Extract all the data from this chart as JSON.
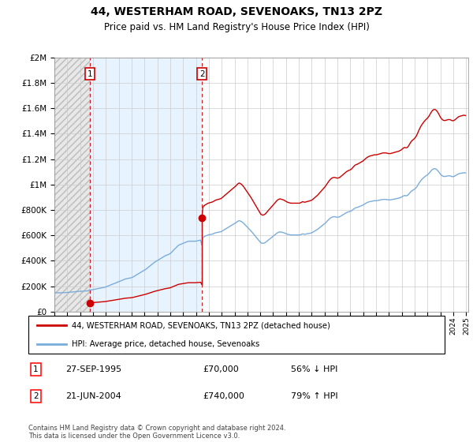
{
  "title": "44, WESTERHAM ROAD, SEVENOAKS, TN13 2PZ",
  "subtitle": "Price paid vs. HM Land Registry's House Price Index (HPI)",
  "sale1_date": "1995-09-27",
  "sale1_price": 70000,
  "sale2_date": "2004-06-21",
  "sale2_price": 740000,
  "legend_red": "44, WESTERHAM ROAD, SEVENOAKS, TN13 2PZ (detached house)",
  "legend_blue": "HPI: Average price, detached house, Sevenoaks",
  "footer": "Contains HM Land Registry data © Crown copyright and database right 2024.\nThis data is licensed under the Open Government Licence v3.0.",
  "red_color": "#cc0000",
  "blue_color": "#7aaddb",
  "vline_color": "#cc0000",
  "ylim": [
    0,
    2000000
  ],
  "yticks": [
    0,
    200000,
    400000,
    600000,
    800000,
    1000000,
    1200000,
    1400000,
    1600000,
    1800000,
    2000000
  ],
  "hpi_index_at_sale1": 100.0,
  "hpi_index_at_sale2": 307.0,
  "hpi_monthly": {
    "1993-01": 88,
    "1993-02": 87,
    "1993-03": 87,
    "1993-04": 87,
    "1993-05": 87,
    "1993-06": 87,
    "1993-07": 87,
    "1993-08": 87,
    "1993-09": 88,
    "1993-10": 88,
    "1993-11": 88,
    "1993-12": 88,
    "1994-01": 89,
    "1994-02": 89,
    "1994-03": 90,
    "1994-04": 90,
    "1994-05": 90,
    "1994-06": 91,
    "1994-07": 91,
    "1994-08": 92,
    "1994-09": 92,
    "1994-10": 93,
    "1994-11": 93,
    "1994-12": 94,
    "1995-01": 94,
    "1995-02": 94,
    "1995-03": 94,
    "1995-04": 95,
    "1995-05": 95,
    "1995-06": 95,
    "1995-07": 96,
    "1995-08": 96,
    "1995-09": 100,
    "1995-10": 100,
    "1995-11": 100,
    "1995-12": 101,
    "1996-01": 102,
    "1996-02": 103,
    "1996-03": 104,
    "1996-04": 105,
    "1996-05": 106,
    "1996-06": 107,
    "1996-07": 108,
    "1996-08": 109,
    "1996-09": 110,
    "1996-10": 111,
    "1996-11": 112,
    "1996-12": 113,
    "1997-01": 115,
    "1997-02": 117,
    "1997-03": 119,
    "1997-04": 121,
    "1997-05": 123,
    "1997-06": 125,
    "1997-07": 127,
    "1997-08": 129,
    "1997-09": 131,
    "1997-10": 133,
    "1997-11": 135,
    "1997-12": 137,
    "1998-01": 139,
    "1998-02": 141,
    "1998-03": 143,
    "1998-04": 145,
    "1998-05": 147,
    "1998-06": 149,
    "1998-07": 151,
    "1998-08": 152,
    "1998-09": 153,
    "1998-10": 154,
    "1998-11": 155,
    "1998-12": 156,
    "1999-01": 158,
    "1999-02": 160,
    "1999-03": 163,
    "1999-04": 166,
    "1999-05": 169,
    "1999-06": 172,
    "1999-07": 175,
    "1999-08": 178,
    "1999-09": 181,
    "1999-10": 184,
    "1999-11": 187,
    "1999-12": 190,
    "2000-01": 193,
    "2000-02": 196,
    "2000-03": 200,
    "2000-04": 204,
    "2000-05": 208,
    "2000-06": 212,
    "2000-07": 216,
    "2000-08": 220,
    "2000-09": 224,
    "2000-10": 228,
    "2000-11": 231,
    "2000-12": 234,
    "2001-01": 237,
    "2001-02": 240,
    "2001-03": 243,
    "2001-04": 246,
    "2001-05": 249,
    "2001-06": 252,
    "2001-07": 255,
    "2001-08": 258,
    "2001-09": 260,
    "2001-10": 262,
    "2001-11": 264,
    "2001-12": 266,
    "2002-01": 270,
    "2002-02": 275,
    "2002-03": 280,
    "2002-04": 285,
    "2002-05": 290,
    "2002-06": 295,
    "2002-07": 300,
    "2002-08": 305,
    "2002-09": 308,
    "2002-10": 310,
    "2002-11": 312,
    "2002-12": 314,
    "2003-01": 316,
    "2003-02": 318,
    "2003-03": 320,
    "2003-04": 322,
    "2003-05": 324,
    "2003-06": 325,
    "2003-07": 325,
    "2003-08": 325,
    "2003-09": 325,
    "2003-10": 325,
    "2003-11": 325,
    "2003-12": 325,
    "2004-01": 326,
    "2004-02": 327,
    "2004-03": 328,
    "2004-04": 329,
    "2004-05": 330,
    "2004-06": 307,
    "2004-07": 340,
    "2004-08": 345,
    "2004-09": 348,
    "2004-10": 350,
    "2004-11": 352,
    "2004-12": 354,
    "2005-01": 355,
    "2005-02": 356,
    "2005-03": 357,
    "2005-04": 358,
    "2005-05": 360,
    "2005-06": 362,
    "2005-07": 364,
    "2005-08": 365,
    "2005-09": 366,
    "2005-10": 367,
    "2005-11": 368,
    "2005-12": 369,
    "2006-01": 372,
    "2006-02": 375,
    "2006-03": 378,
    "2006-04": 381,
    "2006-05": 384,
    "2006-06": 387,
    "2006-07": 390,
    "2006-08": 393,
    "2006-09": 396,
    "2006-10": 399,
    "2006-11": 402,
    "2006-12": 405,
    "2007-01": 408,
    "2007-02": 411,
    "2007-03": 415,
    "2007-04": 418,
    "2007-05": 420,
    "2007-06": 418,
    "2007-07": 416,
    "2007-08": 412,
    "2007-09": 408,
    "2007-10": 403,
    "2007-11": 398,
    "2007-12": 393,
    "2008-01": 388,
    "2008-02": 383,
    "2008-03": 378,
    "2008-04": 372,
    "2008-05": 366,
    "2008-06": 360,
    "2008-07": 354,
    "2008-08": 348,
    "2008-09": 342,
    "2008-10": 336,
    "2008-11": 330,
    "2008-12": 324,
    "2009-01": 318,
    "2009-02": 316,
    "2009-03": 315,
    "2009-04": 316,
    "2009-05": 318,
    "2009-06": 322,
    "2009-07": 326,
    "2009-08": 330,
    "2009-09": 334,
    "2009-10": 338,
    "2009-11": 342,
    "2009-12": 346,
    "2010-01": 350,
    "2010-02": 354,
    "2010-03": 358,
    "2010-04": 362,
    "2010-05": 365,
    "2010-06": 367,
    "2010-07": 368,
    "2010-08": 367,
    "2010-09": 366,
    "2010-10": 365,
    "2010-11": 363,
    "2010-12": 361,
    "2011-01": 359,
    "2011-02": 357,
    "2011-03": 356,
    "2011-04": 355,
    "2011-05": 354,
    "2011-06": 354,
    "2011-07": 354,
    "2011-08": 354,
    "2011-09": 354,
    "2011-10": 354,
    "2011-11": 354,
    "2011-12": 354,
    "2012-01": 354,
    "2012-02": 355,
    "2012-03": 357,
    "2012-04": 359,
    "2012-05": 358,
    "2012-06": 357,
    "2012-07": 358,
    "2012-08": 359,
    "2012-09": 360,
    "2012-10": 361,
    "2012-11": 362,
    "2012-12": 363,
    "2013-01": 365,
    "2013-02": 368,
    "2013-03": 371,
    "2013-04": 374,
    "2013-05": 377,
    "2013-06": 380,
    "2013-07": 384,
    "2013-08": 388,
    "2013-09": 392,
    "2013-10": 396,
    "2013-11": 400,
    "2013-12": 404,
    "2014-01": 408,
    "2014-02": 413,
    "2014-03": 418,
    "2014-04": 423,
    "2014-05": 428,
    "2014-06": 432,
    "2014-07": 435,
    "2014-08": 437,
    "2014-09": 438,
    "2014-10": 438,
    "2014-11": 437,
    "2014-12": 436,
    "2015-01": 436,
    "2015-02": 437,
    "2015-03": 439,
    "2015-04": 442,
    "2015-05": 445,
    "2015-06": 448,
    "2015-07": 451,
    "2015-08": 454,
    "2015-09": 457,
    "2015-10": 459,
    "2015-11": 461,
    "2015-12": 462,
    "2016-01": 464,
    "2016-02": 467,
    "2016-03": 471,
    "2016-04": 475,
    "2016-05": 478,
    "2016-06": 480,
    "2016-07": 481,
    "2016-08": 483,
    "2016-09": 485,
    "2016-10": 487,
    "2016-11": 489,
    "2016-12": 491,
    "2017-01": 494,
    "2017-02": 497,
    "2017-03": 500,
    "2017-04": 503,
    "2017-05": 505,
    "2017-06": 507,
    "2017-07": 508,
    "2017-08": 509,
    "2017-09": 510,
    "2017-10": 511,
    "2017-11": 512,
    "2017-12": 512,
    "2018-01": 512,
    "2018-02": 513,
    "2018-03": 514,
    "2018-04": 515,
    "2018-05": 516,
    "2018-06": 517,
    "2018-07": 518,
    "2018-08": 518,
    "2018-09": 518,
    "2018-10": 518,
    "2018-11": 517,
    "2018-12": 516,
    "2019-01": 516,
    "2019-02": 516,
    "2019-03": 517,
    "2019-04": 518,
    "2019-05": 519,
    "2019-06": 520,
    "2019-07": 521,
    "2019-08": 522,
    "2019-09": 523,
    "2019-10": 524,
    "2019-11": 526,
    "2019-12": 528,
    "2020-01": 531,
    "2020-02": 534,
    "2020-03": 536,
    "2020-04": 535,
    "2020-05": 535,
    "2020-06": 537,
    "2020-07": 542,
    "2020-08": 548,
    "2020-09": 554,
    "2020-10": 558,
    "2020-11": 561,
    "2020-12": 564,
    "2021-01": 568,
    "2021-02": 573,
    "2021-03": 580,
    "2021-04": 588,
    "2021-05": 596,
    "2021-06": 603,
    "2021-07": 609,
    "2021-08": 614,
    "2021-09": 619,
    "2021-10": 623,
    "2021-11": 627,
    "2021-12": 630,
    "2022-01": 634,
    "2022-02": 639,
    "2022-03": 645,
    "2022-04": 651,
    "2022-05": 656,
    "2022-06": 659,
    "2022-07": 660,
    "2022-08": 659,
    "2022-09": 656,
    "2022-10": 651,
    "2022-11": 645,
    "2022-12": 638,
    "2023-01": 632,
    "2023-02": 628,
    "2023-03": 625,
    "2023-04": 624,
    "2023-05": 624,
    "2023-06": 625,
    "2023-07": 626,
    "2023-08": 627,
    "2023-09": 627,
    "2023-10": 626,
    "2023-11": 624,
    "2023-12": 623,
    "2024-01": 624,
    "2024-02": 626,
    "2024-03": 629,
    "2024-04": 632,
    "2024-05": 635,
    "2024-06": 637,
    "2024-07": 638,
    "2024-08": 639,
    "2024-09": 640,
    "2024-10": 641,
    "2024-11": 641,
    "2024-12": 640
  }
}
